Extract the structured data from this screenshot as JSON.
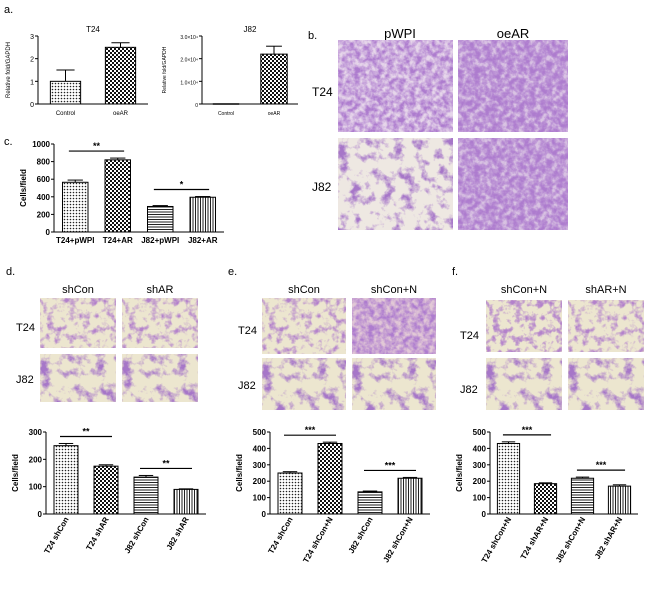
{
  "panel_labels": {
    "a": "a.",
    "b": "b.",
    "c": "c.",
    "d": "d.",
    "e": "e.",
    "f": "f."
  },
  "panel_b": {
    "columns": [
      "pWPI",
      "oeAR"
    ],
    "rows": [
      "T24",
      "J82"
    ]
  },
  "panel_d": {
    "columns": [
      "shCon",
      "shAR"
    ],
    "rows": [
      "T24",
      "J82"
    ]
  },
  "panel_e": {
    "columns": [
      "shCon",
      "shCon+N"
    ],
    "rows": [
      "T24",
      "J82"
    ]
  },
  "panel_f": {
    "columns": [
      "shCon+N",
      "shAR+N"
    ],
    "rows": [
      "T24",
      "J82"
    ]
  },
  "colors": {
    "stain_dark": "#5a2a8a",
    "stain_mid": "#8a55b5",
    "stain_light": "#c9a9dd",
    "bg_pale": "#e9dfe9",
    "bg_tan": "#ece6cf"
  },
  "chart_data": [
    {
      "id": "a1",
      "type": "bar",
      "title": "T24",
      "ylabel": "Relative fold/GAPDH",
      "categories": [
        "Control",
        "oeAR"
      ],
      "values": [
        1.0,
        2.5
      ],
      "errors": [
        0.5,
        0.2
      ],
      "ylim": [
        0,
        3
      ],
      "yticks": [
        0,
        1,
        2,
        3
      ],
      "ytick_labels": [
        "0",
        "1",
        "2",
        "3"
      ],
      "patterns": [
        "dots",
        "check"
      ],
      "significance": []
    },
    {
      "id": "a2",
      "type": "bar",
      "title": "J82",
      "ylabel": "Relative fold/GAPDH",
      "categories": [
        "Control",
        "oeAR"
      ],
      "values": [
        0,
        22000
      ],
      "errors": [
        0,
        3500
      ],
      "ylim": [
        0,
        30000
      ],
      "yticks": [
        0,
        10000,
        20000,
        30000
      ],
      "ytick_labels": [
        "0",
        "1.0×10⁴",
        "2.0×10⁴",
        "3.0×10⁴"
      ],
      "patterns": [
        "dots",
        "check"
      ],
      "significance": []
    },
    {
      "id": "c",
      "type": "bar",
      "ylabel": "Cells/field",
      "categories": [
        "T24+pWPI",
        "T24+AR",
        "J82+pWPI",
        "J82+AR"
      ],
      "values": [
        565,
        820,
        290,
        395
      ],
      "errors": [
        25,
        20,
        10,
        8
      ],
      "ylim": [
        0,
        1000
      ],
      "yticks": [
        0,
        200,
        400,
        600,
        800,
        1000
      ],
      "ytick_labels": [
        "0",
        "200",
        "400",
        "600",
        "800",
        "1000"
      ],
      "patterns": [
        "dots",
        "check",
        "hlines",
        "vlines"
      ],
      "significance": [
        {
          "from": 0,
          "to": 1,
          "label": "**"
        },
        {
          "from": 2,
          "to": 3,
          "label": "*"
        }
      ]
    },
    {
      "id": "d",
      "type": "bar",
      "ylabel": "Cells/field",
      "categories": [
        "T24 shCon",
        "T24 shAR",
        "J82 shCon",
        "J82 shAR"
      ],
      "values": [
        250,
        175,
        135,
        90
      ],
      "errors": [
        8,
        5,
        6,
        2
      ],
      "ylim": [
        0,
        300
      ],
      "yticks": [
        0,
        100,
        200,
        300
      ],
      "ytick_labels": [
        "0",
        "100",
        "200",
        "300"
      ],
      "patterns": [
        "dots",
        "check",
        "hlines",
        "vlines"
      ],
      "significance": [
        {
          "from": 0,
          "to": 1,
          "label": "**"
        },
        {
          "from": 2,
          "to": 3,
          "label": "**"
        }
      ]
    },
    {
      "id": "e",
      "type": "bar",
      "ylabel": "Cells/field",
      "categories": [
        "T24 shCon",
        "T24 shCon+N",
        "J82 shCon",
        "J82 shCon+N"
      ],
      "values": [
        250,
        430,
        135,
        218
      ],
      "errors": [
        8,
        8,
        5,
        5
      ],
      "ylim": [
        0,
        500
      ],
      "yticks": [
        0,
        100,
        200,
        300,
        400,
        500
      ],
      "ytick_labels": [
        "0",
        "100",
        "200",
        "300",
        "400",
        "500"
      ],
      "patterns": [
        "dots",
        "check",
        "hlines",
        "vlines"
      ],
      "significance": [
        {
          "from": 0,
          "to": 1,
          "label": "***"
        },
        {
          "from": 2,
          "to": 3,
          "label": "***"
        }
      ]
    },
    {
      "id": "f",
      "type": "bar",
      "ylabel": "Cells/field",
      "categories": [
        "T24 shCon+N",
        "T24 shAR+N",
        "J82 shCon+N",
        "J82 shAR+N"
      ],
      "values": [
        430,
        185,
        218,
        170
      ],
      "errors": [
        10,
        5,
        7,
        8
      ],
      "ylim": [
        0,
        500
      ],
      "yticks": [
        0,
        100,
        200,
        300,
        400,
        500
      ],
      "ytick_labels": [
        "0",
        "100",
        "200",
        "300",
        "400",
        "500"
      ],
      "patterns": [
        "dots",
        "check",
        "hlines",
        "vlines"
      ],
      "significance": [
        {
          "from": 0,
          "to": 1,
          "label": "***"
        },
        {
          "from": 2,
          "to": 3,
          "label": "***"
        }
      ]
    }
  ]
}
